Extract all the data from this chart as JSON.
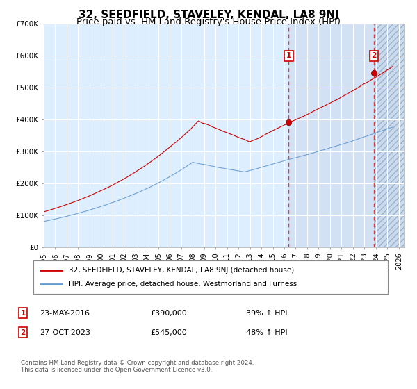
{
  "title": "32, SEEDFIELD, STAVELEY, KENDAL, LA8 9NJ",
  "subtitle": "Price paid vs. HM Land Registry's House Price Index (HPI)",
  "ylim": [
    0,
    700000
  ],
  "yticks": [
    0,
    100000,
    200000,
    300000,
    400000,
    500000,
    600000,
    700000
  ],
  "ytick_labels": [
    "£0",
    "£100K",
    "£200K",
    "£300K",
    "£400K",
    "£500K",
    "£600K",
    "£700K"
  ],
  "xlim_start": 1995.0,
  "xlim_end": 2026.5,
  "xtick_years": [
    1995,
    1996,
    1997,
    1998,
    1999,
    2000,
    2001,
    2002,
    2003,
    2004,
    2005,
    2006,
    2007,
    2008,
    2009,
    2010,
    2011,
    2012,
    2013,
    2014,
    2015,
    2016,
    2017,
    2018,
    2019,
    2020,
    2021,
    2022,
    2023,
    2024,
    2025,
    2026
  ],
  "sale1_x": 2016.388,
  "sale1_y": 390000,
  "sale1_label": "1",
  "sale2_x": 2023.82,
  "sale2_y": 545000,
  "sale2_label": "2",
  "red_line_color": "#cc0000",
  "blue_line_color": "#6699cc",
  "background_color": "#ddeeff",
  "grid_color": "#ffffff",
  "dashed_line_color": "#dd2222",
  "title_fontsize": 11,
  "subtitle_fontsize": 9.5,
  "tick_fontsize": 7.5,
  "legend_line1": "32, SEEDFIELD, STAVELEY, KENDAL, LA8 9NJ (detached house)",
  "legend_line2": "HPI: Average price, detached house, Westmorland and Furness",
  "annotation1_date": "23-MAY-2016",
  "annotation1_price": "£390,000",
  "annotation1_hpi": "39% ↑ HPI",
  "annotation2_date": "27-OCT-2023",
  "annotation2_price": "£545,000",
  "annotation2_hpi": "48% ↑ HPI",
  "footer": "Contains HM Land Registry data © Crown copyright and database right 2024.\nThis data is licensed under the Open Government Licence v3.0."
}
